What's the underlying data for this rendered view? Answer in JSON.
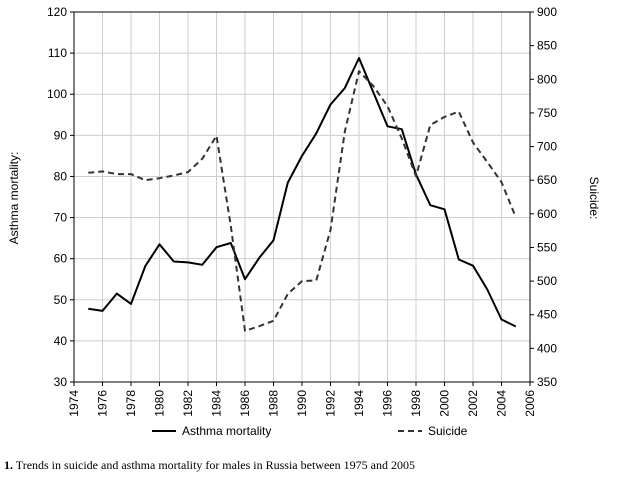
{
  "chart_data": {
    "type": "line",
    "x": [
      1975,
      1976,
      1977,
      1978,
      1979,
      1980,
      1981,
      1982,
      1983,
      1984,
      1985,
      1986,
      1987,
      1988,
      1989,
      1990,
      1991,
      1992,
      1993,
      1994,
      1995,
      1996,
      1997,
      1998,
      1999,
      2000,
      2001,
      2002,
      2003,
      2004,
      2005
    ],
    "xlim": [
      1974,
      2006
    ],
    "xticks": [
      "1974",
      "1976",
      "1978",
      "1980",
      "1982",
      "1984",
      "1986",
      "1988",
      "1990",
      "1992",
      "1994",
      "1996",
      "1998",
      "2000",
      "2002",
      "2004",
      "2006"
    ],
    "ylim_left": [
      30,
      120
    ],
    "yticks_left": [
      "30",
      "40",
      "50",
      "60",
      "70",
      "80",
      "90",
      "100",
      "110",
      "120"
    ],
    "ylim_right": [
      350,
      900
    ],
    "yticks_right": [
      "350",
      "400",
      "450",
      "500",
      "550",
      "600",
      "650",
      "700",
      "750",
      "800",
      "850",
      "900"
    ],
    "ylabel_left": "Asthma mortality:",
    "ylabel_right": "Suicide:",
    "series": [
      {
        "name": "Asthma mortality",
        "axis": "left",
        "style": "solid",
        "color": "#000000",
        "values": [
          47.8,
          47.3,
          51.5,
          49.0,
          58.2,
          63.5,
          59.3,
          59.1,
          58.5,
          62.8,
          63.8,
          55.0,
          60.2,
          64.5,
          78.5,
          85.0,
          90.5,
          97.5,
          101.5,
          108.8,
          100.5,
          92.2,
          91.5,
          80.5,
          73.0,
          72.0,
          59.8,
          58.3,
          52.5,
          45.2,
          43.5
        ]
      },
      {
        "name": "Suicide",
        "axis": "right",
        "style": "dashed",
        "color": "#333333",
        "values": [
          661,
          663,
          659,
          659,
          650,
          653,
          657,
          662,
          682,
          716,
          582,
          426,
          433,
          441,
          481,
          500,
          501,
          576,
          722,
          812,
          790,
          760,
          712,
          656,
          732,
          744,
          752,
          706,
          677,
          647,
          595
        ]
      }
    ],
    "grid": true,
    "legend_position": "bottom"
  },
  "caption": {
    "number": "1.",
    "text": " Trends in suicide and asthma mortality for males in Russia between 1975 and 2005"
  }
}
